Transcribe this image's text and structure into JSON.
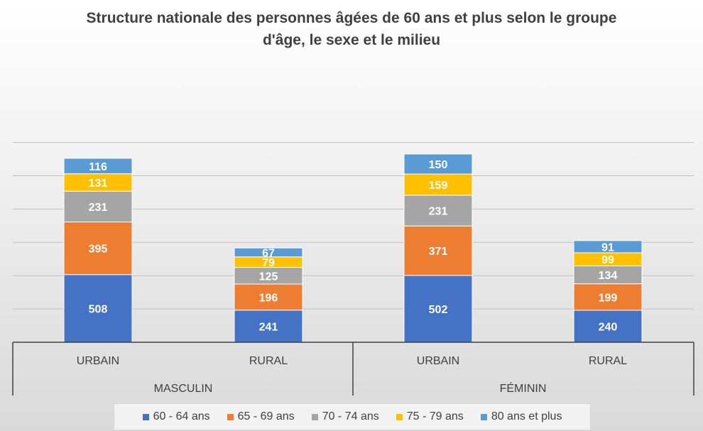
{
  "chart_data": {
    "type": "bar",
    "stacked": true,
    "title": "Structure nationale des personnes âgées de 60 ans et plus selon le groupe d'âge, le sexe et le milieu",
    "categories": [
      "URBAIN",
      "RURAL",
      "URBAIN",
      "RURAL"
    ],
    "groups": [
      {
        "label": "MASCULIN",
        "categories": [
          0,
          1
        ]
      },
      {
        "label": "FÉMININ",
        "categories": [
          2,
          3
        ]
      }
    ],
    "series": [
      {
        "name": "60 - 64 ans",
        "color": "#4472C4",
        "values": [
          508,
          241,
          502,
          240
        ]
      },
      {
        "name": "65 - 69 ans",
        "color": "#ED7D31",
        "values": [
          395,
          196,
          371,
          199
        ]
      },
      {
        "name": "70 - 74 ans",
        "color": "#A5A5A5",
        "values": [
          231,
          125,
          231,
          134
        ]
      },
      {
        "name": "75 - 79 ans",
        "color": "#FFC000",
        "values": [
          131,
          79,
          159,
          99
        ]
      },
      {
        "name": "80 ans et plus",
        "color": "#5B9BD5",
        "values": [
          116,
          67,
          150,
          91
        ]
      }
    ],
    "ylim": [
      0,
      1600
    ],
    "grid": true,
    "legend_position": "bottom"
  }
}
